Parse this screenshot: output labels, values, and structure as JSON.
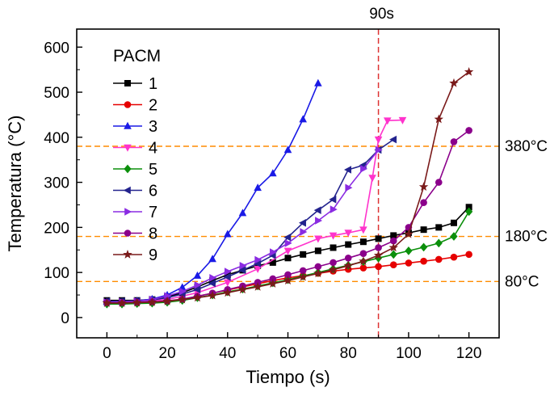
{
  "figure": {
    "background": "#ffffff"
  },
  "chart_data": {
    "type": "line",
    "title": "",
    "xlabel": "Tiempo (s)",
    "ylabel": "Temperatura (°C)",
    "xlim": [
      -10,
      130
    ],
    "ylim": [
      -45,
      640
    ],
    "xticks": [
      0,
      20,
      40,
      60,
      80,
      100,
      120
    ],
    "yticks": [
      0,
      100,
      200,
      300,
      400,
      500,
      600
    ],
    "x_minor_step": 10,
    "y_minor_step": 50,
    "grid": false,
    "legend_title": "PACM",
    "legend_position": "top-left-inside",
    "frame_color": "#000000",
    "series": [
      {
        "name": "1",
        "color": "#000000",
        "marker": "square",
        "points": [
          [
            0,
            38
          ],
          [
            5,
            38
          ],
          [
            10,
            38
          ],
          [
            15,
            40
          ],
          [
            20,
            46
          ],
          [
            25,
            55
          ],
          [
            30,
            68
          ],
          [
            35,
            82
          ],
          [
            40,
            95
          ],
          [
            45,
            105
          ],
          [
            50,
            115
          ],
          [
            55,
            122
          ],
          [
            60,
            132
          ],
          [
            65,
            140
          ],
          [
            70,
            148
          ],
          [
            75,
            155
          ],
          [
            80,
            162
          ],
          [
            85,
            168
          ],
          [
            90,
            175
          ],
          [
            95,
            182
          ],
          [
            100,
            188
          ],
          [
            105,
            195
          ],
          [
            110,
            200
          ],
          [
            115,
            210
          ],
          [
            120,
            245
          ]
        ]
      },
      {
        "name": "2",
        "color": "#e60000",
        "marker": "circle",
        "points": [
          [
            0,
            32
          ],
          [
            5,
            32
          ],
          [
            10,
            32
          ],
          [
            15,
            33
          ],
          [
            20,
            35
          ],
          [
            25,
            40
          ],
          [
            30,
            47
          ],
          [
            35,
            54
          ],
          [
            40,
            61
          ],
          [
            45,
            68
          ],
          [
            50,
            75
          ],
          [
            55,
            82
          ],
          [
            60,
            88
          ],
          [
            65,
            93
          ],
          [
            70,
            98
          ],
          [
            75,
            103
          ],
          [
            80,
            107
          ],
          [
            85,
            110
          ],
          [
            90,
            113
          ],
          [
            95,
            117
          ],
          [
            100,
            121
          ],
          [
            105,
            125
          ],
          [
            110,
            129
          ],
          [
            115,
            134
          ],
          [
            120,
            140
          ]
        ]
      },
      {
        "name": "3",
        "color": "#1a1ae6",
        "marker": "triangle-up",
        "points": [
          [
            0,
            35
          ],
          [
            5,
            35
          ],
          [
            10,
            37
          ],
          [
            15,
            41
          ],
          [
            20,
            50
          ],
          [
            25,
            67
          ],
          [
            30,
            93
          ],
          [
            35,
            130
          ],
          [
            40,
            185
          ],
          [
            45,
            232
          ],
          [
            50,
            288
          ],
          [
            55,
            320
          ],
          [
            60,
            372
          ],
          [
            65,
            440
          ],
          [
            70,
            520
          ]
        ]
      },
      {
        "name": "4",
        "color": "#ff33cc",
        "marker": "triangle-down",
        "points": [
          [
            0,
            33
          ],
          [
            10,
            35
          ],
          [
            20,
            40
          ],
          [
            30,
            55
          ],
          [
            40,
            78
          ],
          [
            50,
            108
          ],
          [
            60,
            148
          ],
          [
            70,
            175
          ],
          [
            75,
            182
          ],
          [
            80,
            188
          ],
          [
            85,
            195
          ],
          [
            88,
            310
          ],
          [
            90,
            395
          ],
          [
            93,
            437
          ],
          [
            98,
            438
          ]
        ]
      },
      {
        "name": "5",
        "color": "#0b8f0b",
        "marker": "diamond",
        "points": [
          [
            0,
            30
          ],
          [
            5,
            30
          ],
          [
            10,
            31
          ],
          [
            15,
            32
          ],
          [
            20,
            34
          ],
          [
            25,
            38
          ],
          [
            30,
            44
          ],
          [
            35,
            50
          ],
          [
            40,
            57
          ],
          [
            45,
            63
          ],
          [
            50,
            70
          ],
          [
            55,
            77
          ],
          [
            60,
            84
          ],
          [
            65,
            92
          ],
          [
            70,
            100
          ],
          [
            75,
            108
          ],
          [
            80,
            116
          ],
          [
            85,
            124
          ],
          [
            90,
            132
          ],
          [
            95,
            140
          ],
          [
            100,
            148
          ],
          [
            105,
            156
          ],
          [
            110,
            165
          ],
          [
            115,
            180
          ],
          [
            120,
            235
          ]
        ]
      },
      {
        "name": "6",
        "color": "#23238e",
        "marker": "triangle-left",
        "points": [
          [
            0,
            36
          ],
          [
            5,
            36
          ],
          [
            10,
            37
          ],
          [
            15,
            39
          ],
          [
            20,
            44
          ],
          [
            25,
            52
          ],
          [
            30,
            62
          ],
          [
            35,
            76
          ],
          [
            40,
            90
          ],
          [
            45,
            105
          ],
          [
            50,
            120
          ],
          [
            55,
            138
          ],
          [
            60,
            178
          ],
          [
            65,
            210
          ],
          [
            70,
            238
          ],
          [
            75,
            262
          ],
          [
            80,
            328
          ],
          [
            85,
            338
          ],
          [
            90,
            372
          ],
          [
            95,
            395
          ]
        ]
      },
      {
        "name": "7",
        "color": "#8a2be2",
        "marker": "triangle-right",
        "points": [
          [
            0,
            34
          ],
          [
            5,
            35
          ],
          [
            10,
            36
          ],
          [
            15,
            40
          ],
          [
            20,
            48
          ],
          [
            25,
            58
          ],
          [
            30,
            72
          ],
          [
            35,
            88
          ],
          [
            40,
            102
          ],
          [
            45,
            115
          ],
          [
            50,
            128
          ],
          [
            55,
            145
          ],
          [
            60,
            165
          ],
          [
            65,
            190
          ],
          [
            70,
            215
          ],
          [
            75,
            240
          ],
          [
            80,
            288
          ],
          [
            85,
            330
          ],
          [
            90,
            372
          ]
        ]
      },
      {
        "name": "8",
        "color": "#8b008b",
        "marker": "circle",
        "points": [
          [
            0,
            33
          ],
          [
            5,
            33
          ],
          [
            10,
            34
          ],
          [
            15,
            35
          ],
          [
            20,
            37
          ],
          [
            25,
            41
          ],
          [
            30,
            47
          ],
          [
            35,
            54
          ],
          [
            40,
            62
          ],
          [
            45,
            70
          ],
          [
            50,
            78
          ],
          [
            55,
            86
          ],
          [
            60,
            95
          ],
          [
            65,
            104
          ],
          [
            70,
            113
          ],
          [
            75,
            122
          ],
          [
            80,
            132
          ],
          [
            85,
            142
          ],
          [
            90,
            155
          ],
          [
            95,
            170
          ],
          [
            100,
            200
          ],
          [
            105,
            255
          ],
          [
            110,
            300
          ],
          [
            115,
            390
          ],
          [
            120,
            415
          ]
        ]
      },
      {
        "name": "9",
        "color": "#7a1a1a",
        "marker": "star",
        "points": [
          [
            0,
            32
          ],
          [
            5,
            32
          ],
          [
            10,
            33
          ],
          [
            15,
            34
          ],
          [
            20,
            36
          ],
          [
            25,
            40
          ],
          [
            30,
            44
          ],
          [
            35,
            49
          ],
          [
            40,
            55
          ],
          [
            45,
            62
          ],
          [
            50,
            68
          ],
          [
            55,
            75
          ],
          [
            60,
            82
          ],
          [
            65,
            90
          ],
          [
            70,
            98
          ],
          [
            75,
            106
          ],
          [
            80,
            115
          ],
          [
            85,
            125
          ],
          [
            90,
            138
          ],
          [
            95,
            155
          ],
          [
            100,
            185
          ],
          [
            105,
            290
          ],
          [
            110,
            440
          ],
          [
            115,
            520
          ],
          [
            120,
            545
          ]
        ]
      }
    ],
    "annotations": {
      "vlines": [
        {
          "x": 90,
          "label": "90s",
          "color": "#de3333"
        }
      ],
      "hlines": [
        {
          "y": 380,
          "label": "380°C",
          "color": "#ff8c00"
        },
        {
          "y": 180,
          "label": "180°C",
          "color": "#ff8c00"
        },
        {
          "y": 80,
          "label": "80°C",
          "color": "#ff8c00"
        }
      ]
    }
  }
}
